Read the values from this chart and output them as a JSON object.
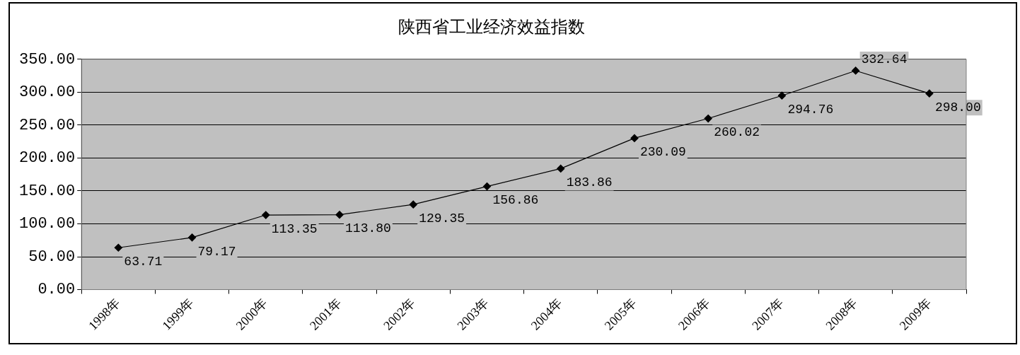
{
  "chart_data": {
    "type": "line",
    "title": "陕西省工业经济效益指数",
    "categories": [
      "1998年",
      "1999年",
      "2000年",
      "2001年",
      "2002年",
      "2003年",
      "2004年",
      "2005年",
      "2006年",
      "2007年",
      "2008年",
      "2009年"
    ],
    "series": [
      {
        "color": "#000000",
        "values": [
          63.71,
          79.17,
          113.35,
          113.8,
          129.35,
          156.86,
          183.86,
          230.09,
          260.02,
          294.76,
          332.64,
          298.0
        ],
        "value_labels": [
          "63.71",
          "79.17",
          "113.35",
          "113.80",
          "129.35",
          "156.86",
          "183.86",
          "230.09",
          "260.02",
          "294.76",
          "332.64",
          "298.00"
        ]
      }
    ],
    "ylim": [
      0,
      350
    ],
    "yticks": [
      {
        "value": 0,
        "label": "0.00"
      },
      {
        "value": 50,
        "label": "50.00"
      },
      {
        "value": 100,
        "label": "100.00"
      },
      {
        "value": 150,
        "label": "150.00"
      },
      {
        "value": 200,
        "label": "200.00"
      },
      {
        "value": 250,
        "label": "250.00"
      },
      {
        "value": 300,
        "label": "300.00"
      },
      {
        "value": 350,
        "label": "350.00"
      }
    ],
    "grid": "y",
    "legend": false,
    "marker": "diamond",
    "line_style": "solid"
  }
}
